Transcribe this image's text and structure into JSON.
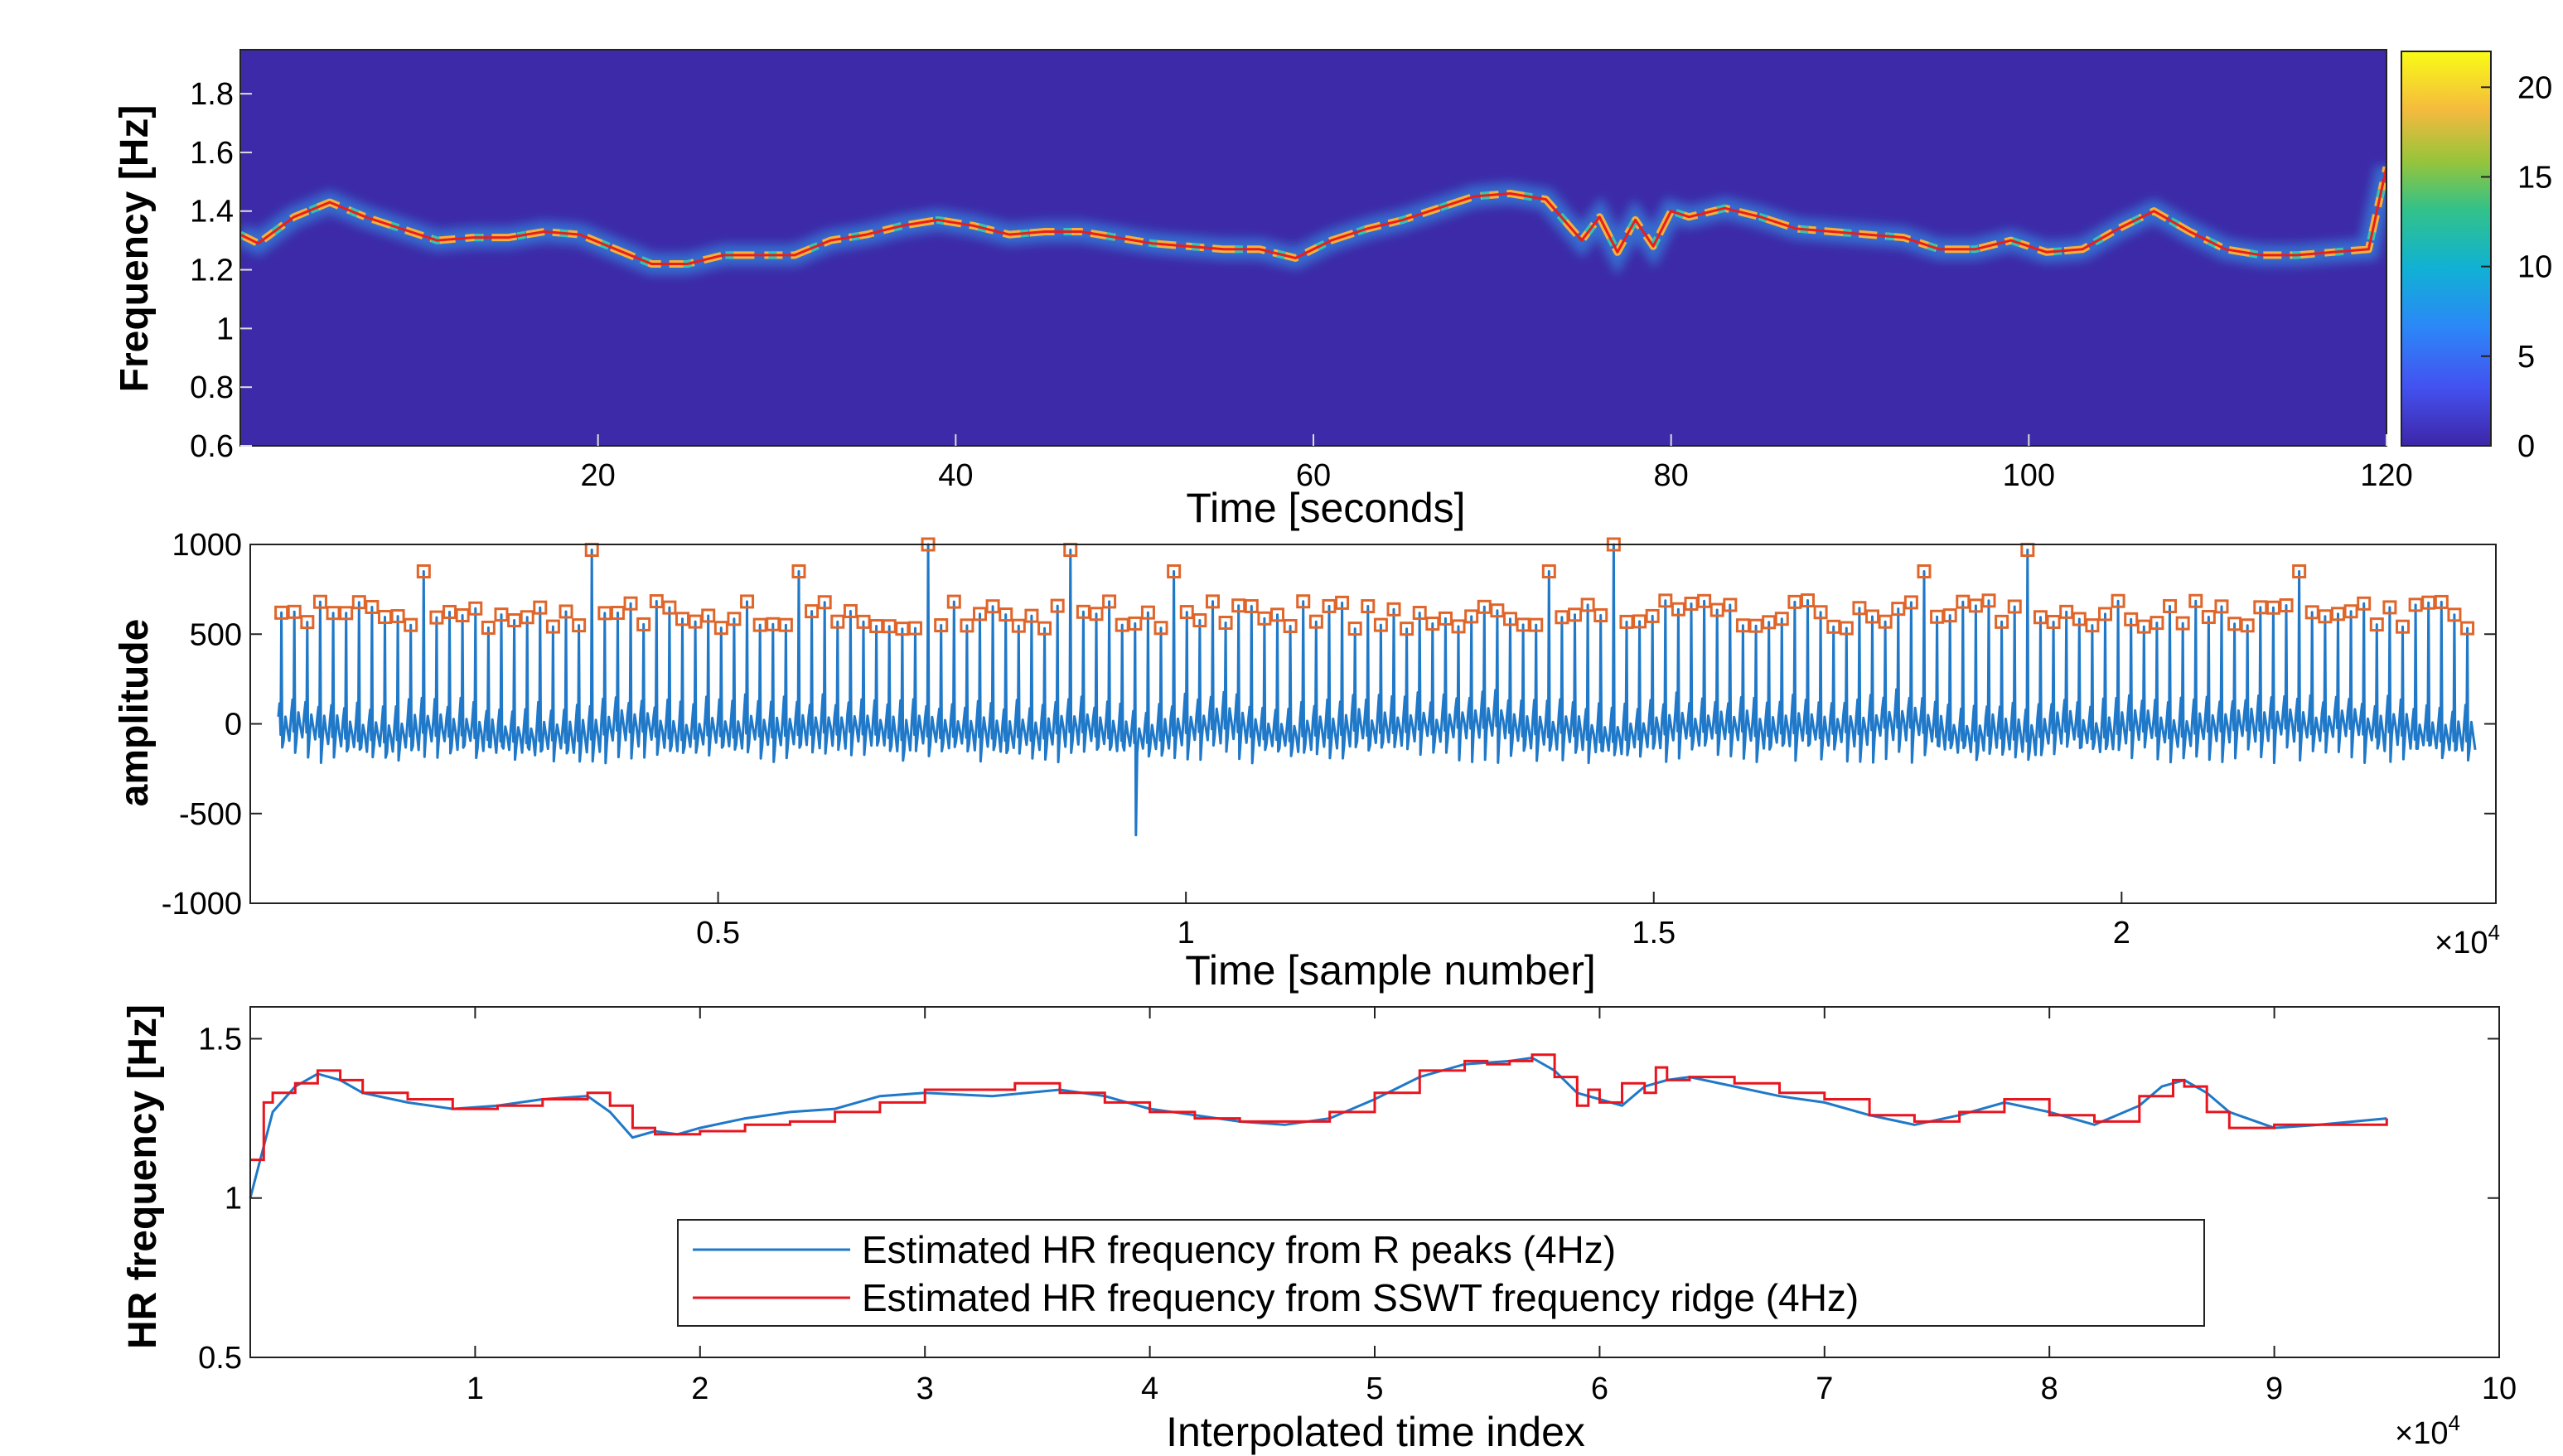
{
  "chart_data": [
    {
      "type": "heatmap",
      "title": "",
      "xlabel": "Time [seconds]",
      "ylabel": "Frequency [Hz]",
      "xlim": [
        0,
        120
      ],
      "ylim": [
        0.6,
        1.95
      ],
      "xticks": [
        "20",
        "40",
        "60",
        "80",
        "100",
        "120"
      ],
      "yticks": [
        "0.6",
        "0.8",
        "1",
        "1.2",
        "1.4",
        "1.6",
        "1.8"
      ],
      "colorbar": {
        "min": 0,
        "max": 22,
        "ticks": [
          "0",
          "5",
          "10",
          "15",
          "20"
        ]
      },
      "ridge": {
        "t": [
          0,
          1,
          3,
          5,
          7,
          9,
          11,
          13,
          15,
          17,
          19,
          21,
          23,
          25,
          27,
          29,
          31,
          33,
          35,
          37,
          39,
          41,
          43,
          45,
          47,
          49,
          51,
          53,
          55,
          57,
          59,
          61,
          63,
          65,
          67,
          69,
          71,
          73,
          75,
          76,
          77,
          78,
          79,
          80,
          81,
          83,
          85,
          87,
          89,
          91,
          93,
          95,
          97,
          99,
          101,
          103,
          105,
          107,
          109,
          111,
          113,
          115,
          117,
          119,
          120
        ],
        "f": [
          1.32,
          1.29,
          1.38,
          1.43,
          1.38,
          1.34,
          1.3,
          1.31,
          1.31,
          1.33,
          1.32,
          1.27,
          1.22,
          1.22,
          1.25,
          1.25,
          1.25,
          1.3,
          1.32,
          1.35,
          1.37,
          1.35,
          1.32,
          1.33,
          1.33,
          1.31,
          1.29,
          1.28,
          1.27,
          1.27,
          1.24,
          1.3,
          1.34,
          1.37,
          1.41,
          1.45,
          1.46,
          1.44,
          1.3,
          1.38,
          1.26,
          1.37,
          1.28,
          1.4,
          1.38,
          1.41,
          1.38,
          1.34,
          1.33,
          1.32,
          1.31,
          1.27,
          1.27,
          1.3,
          1.26,
          1.27,
          1.34,
          1.4,
          1.33,
          1.27,
          1.25,
          1.25,
          1.26,
          1.27,
          1.55
        ]
      }
    },
    {
      "type": "line",
      "title": "",
      "xlabel": "Time [sample number]",
      "ylabel": "amplitude",
      "xlim": [
        0,
        24000
      ],
      "ylim": [
        -1000,
        1000
      ],
      "xticks": [
        "0.5",
        "1",
        "1.5",
        "2"
      ],
      "x_exponent_base": "×10",
      "x_exponent": "4",
      "yticks": [
        "-1000",
        "-500",
        "0",
        "500",
        "1000"
      ],
      "r_peak_count": 170,
      "r_peak_typical_amplitude": 600,
      "r_peak_max_amplitude": 1000,
      "min_amplitude": -620,
      "peak_marker": "square"
    },
    {
      "type": "line",
      "title": "",
      "xlabel": "Interpolated time index",
      "ylabel": "HR frequency [Hz]",
      "xlim": [
        0,
        100000
      ],
      "ylim": [
        0.5,
        1.6
      ],
      "xticks": [
        "1",
        "2",
        "3",
        "4",
        "5",
        "6",
        "7",
        "8",
        "9",
        "10"
      ],
      "x_exponent_base": "×10",
      "x_exponent": "4",
      "yticks": [
        "0.5",
        "1",
        "1.5"
      ],
      "legend": [
        "Estimated HR frequency from R peaks (4Hz)",
        "Estimated HR frequency from SSWT frequency ridge (4Hz)"
      ],
      "series": [
        {
          "name": "Estimated HR frequency from R peaks (4Hz)",
          "color": "#1f78c8",
          "x": [
            0,
            1000,
            2000,
            3000,
            4000,
            5000,
            7000,
            9000,
            11000,
            13000,
            15000,
            16000,
            17000,
            18000,
            19000,
            20000,
            22000,
            24000,
            26000,
            28000,
            30000,
            33000,
            36000,
            38000,
            40000,
            42000,
            44000,
            46000,
            48000,
            50000,
            52000,
            54000,
            56000,
            57000,
            58000,
            59000,
            60000,
            61000,
            62000,
            63000,
            64000,
            66000,
            68000,
            70000,
            72000,
            74000,
            76000,
            78000,
            80000,
            82000,
            84000,
            85000,
            86000,
            87000,
            88000,
            90000,
            92000,
            95000
          ],
          "y": [
            1.0,
            1.27,
            1.35,
            1.39,
            1.37,
            1.33,
            1.3,
            1.28,
            1.29,
            1.31,
            1.32,
            1.27,
            1.19,
            1.21,
            1.2,
            1.22,
            1.25,
            1.27,
            1.28,
            1.32,
            1.33,
            1.32,
            1.34,
            1.32,
            1.28,
            1.26,
            1.24,
            1.23,
            1.25,
            1.31,
            1.38,
            1.42,
            1.43,
            1.44,
            1.4,
            1.33,
            1.31,
            1.29,
            1.35,
            1.37,
            1.38,
            1.35,
            1.32,
            1.3,
            1.26,
            1.23,
            1.26,
            1.3,
            1.27,
            1.23,
            1.29,
            1.35,
            1.37,
            1.33,
            1.27,
            1.22,
            1.23,
            1.25
          ]
        },
        {
          "name": "Estimated HR frequency from SSWT frequency ridge (4Hz)",
          "color": "#e8141e",
          "x": [
            0,
            600,
            1000,
            2000,
            3000,
            4000,
            5000,
            7000,
            9000,
            11000,
            13000,
            15000,
            16000,
            17000,
            18000,
            20000,
            22000,
            24000,
            26000,
            28000,
            30000,
            33000,
            34000,
            36000,
            38000,
            40000,
            42000,
            44000,
            46000,
            48000,
            50000,
            52000,
            54000,
            55000,
            56000,
            57000,
            58000,
            59000,
            59500,
            60000,
            61000,
            62000,
            62500,
            63000,
            64000,
            66000,
            68000,
            70000,
            72000,
            74000,
            76000,
            78000,
            80000,
            82000,
            84000,
            85500,
            86000,
            87000,
            88000,
            90000,
            92000,
            95000
          ],
          "y": [
            1.12,
            1.3,
            1.33,
            1.36,
            1.4,
            1.37,
            1.33,
            1.31,
            1.28,
            1.29,
            1.31,
            1.33,
            1.29,
            1.22,
            1.2,
            1.21,
            1.23,
            1.24,
            1.27,
            1.3,
            1.34,
            1.34,
            1.36,
            1.33,
            1.3,
            1.27,
            1.25,
            1.24,
            1.24,
            1.27,
            1.33,
            1.4,
            1.43,
            1.42,
            1.43,
            1.45,
            1.38,
            1.29,
            1.34,
            1.3,
            1.36,
            1.33,
            1.41,
            1.37,
            1.38,
            1.36,
            1.33,
            1.31,
            1.26,
            1.24,
            1.27,
            1.31,
            1.26,
            1.24,
            1.32,
            1.37,
            1.35,
            1.27,
            1.22,
            1.23,
            1.23,
            1.25
          ]
        }
      ]
    }
  ]
}
